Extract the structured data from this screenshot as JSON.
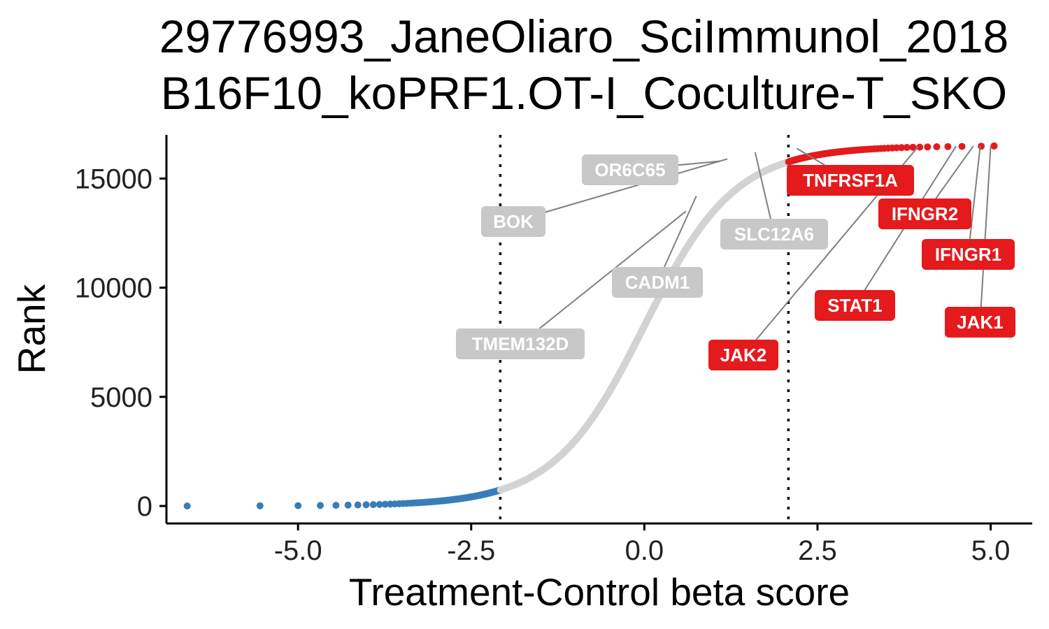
{
  "chart_data": {
    "type": "scatter",
    "title_lines": [
      "29776993_JaneOliaro_SciImmunol_2018",
      "B16F10_koPRF1.OT-I_Coculture-T_SKO"
    ],
    "xlabel": "Treatment-Control beta score",
    "ylabel": "Rank",
    "xlim": [
      -6.9,
      5.6
    ],
    "ylim": [
      -800,
      17000
    ],
    "x_ticks": [
      {
        "value": -5.0,
        "label": "-5.0"
      },
      {
        "value": -2.5,
        "label": "-2.5"
      },
      {
        "value": 0.0,
        "label": "0.0"
      },
      {
        "value": 2.5,
        "label": "2.5"
      },
      {
        "value": 5.0,
        "label": "5.0"
      }
    ],
    "y_ticks": [
      {
        "value": 0,
        "label": "0"
      },
      {
        "value": 5000,
        "label": "5000"
      },
      {
        "value": 10000,
        "label": "10000"
      },
      {
        "value": 15000,
        "label": "15000"
      }
    ],
    "cutoffs": [
      -2.08,
      2.08
    ],
    "grid": false,
    "total_ranked": 16500,
    "colors": {
      "negative": "#377EB8",
      "neutral": "#D3D3D3",
      "positive": "#E41A1C",
      "neutral_label": "#C8C8C8",
      "leader_line": "#7F7F7F",
      "cutoff_line": "#000000"
    },
    "labeled_genes": [
      {
        "name": "OR6C65",
        "x": 1.1,
        "y": 15800,
        "group": "neutral"
      },
      {
        "name": "BOK",
        "x": 1.2,
        "y": 15900,
        "group": "neutral"
      },
      {
        "name": "SLC12A6",
        "x": 1.6,
        "y": 16200,
        "group": "neutral"
      },
      {
        "name": "CADM1",
        "x": 0.75,
        "y": 14200,
        "group": "neutral"
      },
      {
        "name": "TMEM132D",
        "x": 0.6,
        "y": 13500,
        "group": "neutral"
      },
      {
        "name": "TNFRSF1A",
        "x": 2.2,
        "y": 16380,
        "group": "positive"
      },
      {
        "name": "IFNGR2",
        "x": 4.75,
        "y": 16490,
        "group": "positive"
      },
      {
        "name": "IFNGR1",
        "x": 4.85,
        "y": 16495,
        "group": "positive"
      },
      {
        "name": "STAT1",
        "x": 4.5,
        "y": 16480,
        "group": "positive"
      },
      {
        "name": "JAK2",
        "x": 3.95,
        "y": 16450,
        "group": "positive"
      },
      {
        "name": "JAK1",
        "x": 5.0,
        "y": 16500,
        "group": "positive"
      }
    ]
  }
}
